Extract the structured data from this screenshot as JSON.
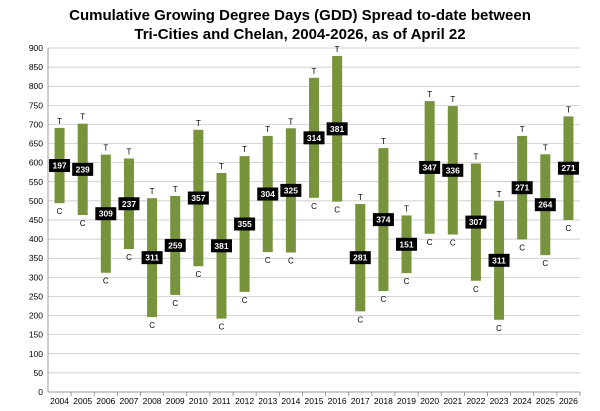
{
  "chart_data": {
    "type": "floating-bar",
    "title": "Cumulative Growing Degree Days (GDD) Spread to-date between",
    "subtitle": "Tri-Cities and Chelan, 2004-2026,  as of April 22",
    "xlabel": "",
    "ylabel": "",
    "ylim": [
      0,
      900
    ],
    "ytick_step": 50,
    "grid": true,
    "legend": "none",
    "bar_color": "#77933c",
    "label_bg": "#000000",
    "top_marker": "T",
    "bottom_marker": "C",
    "categories": [
      "2004",
      "2005",
      "2006",
      "2007",
      "2008",
      "2009",
      "2010",
      "2011",
      "2012",
      "2013",
      "2014",
      "2015",
      "2016",
      "2017",
      "2018",
      "2019",
      "2020",
      "2021",
      "2022",
      "2023",
      "2024",
      "2025",
      "2026"
    ],
    "series": [
      {
        "name": "Tri-Cities (T)",
        "values": [
          691,
          702,
          621,
          611,
          507,
          513,
          686,
          573,
          617,
          670,
          690,
          822,
          879,
          492,
          638,
          462,
          761,
          748,
          598,
          500,
          670,
          622,
          721
        ]
      },
      {
        "name": "Chelan (C)",
        "values": [
          494,
          463,
          312,
          374,
          196,
          254,
          329,
          192,
          262,
          366,
          365,
          508,
          498,
          211,
          264,
          311,
          414,
          412,
          291,
          189,
          399,
          358,
          450
        ]
      }
    ],
    "spread_labels": [
      "197",
      "239",
      "309",
      "237",
      "311",
      "259",
      "357",
      "381",
      "355",
      "304",
      "325",
      "314",
      "381",
      "281",
      "374",
      "151",
      "347",
      "336",
      "307",
      "311",
      "271",
      "264",
      "271"
    ]
  }
}
